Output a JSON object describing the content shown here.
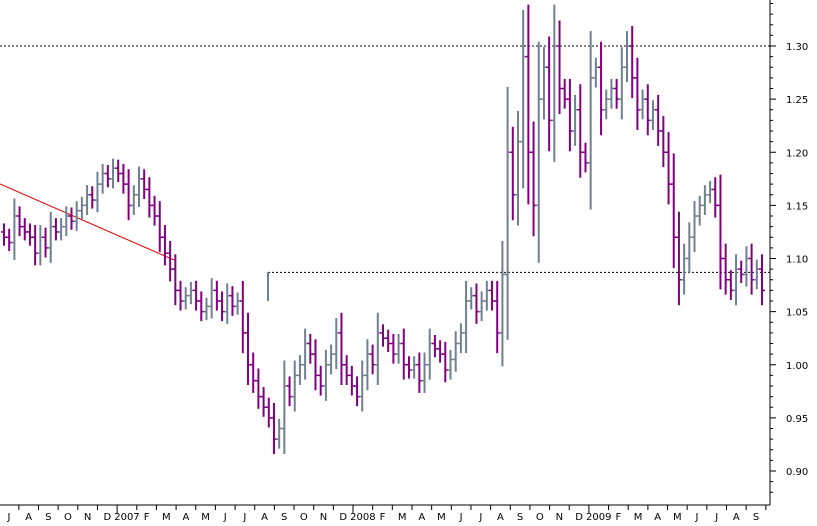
{
  "chart_data": {
    "type": "ohlc",
    "title": "",
    "xlabel": "",
    "ylabel": "",
    "ylim": [
      0.875,
      1.355
    ],
    "y_ticks": [
      0.9,
      0.95,
      1.0,
      1.05,
      1.1,
      1.15,
      1.2,
      1.25,
      1.3
    ],
    "y_tick_labels": [
      "0.90",
      "0.95",
      "1.00",
      "1.05",
      "1.10",
      "1.15",
      "1.20",
      "1.25",
      "1.30"
    ],
    "x_axis_labels": [
      "J",
      "A",
      "S",
      "O",
      "N",
      "D",
      "2007",
      "F",
      "M",
      "A",
      "M",
      "J",
      "J",
      "A",
      "S",
      "O",
      "N",
      "D",
      "2008",
      "F",
      "M",
      "A",
      "M",
      "J",
      "J",
      "A",
      "S",
      "O",
      "N",
      "D",
      "2009",
      "F",
      "M",
      "A",
      "M",
      "J",
      "J",
      "A",
      "S"
    ],
    "colors": {
      "up": "#708090",
      "down": "#800080",
      "trendline": "#dd0000",
      "reference": "#000000",
      "background": "#ffffff",
      "axis": "#000000"
    },
    "close": [
      1.12,
      1.115,
      1.14,
      1.13,
      1.125,
      1.12,
      1.105,
      1.12,
      1.11,
      1.13,
      1.125,
      1.13,
      1.14,
      1.135,
      1.145,
      1.15,
      1.16,
      1.155,
      1.17,
      1.18,
      1.175,
      1.185,
      1.18,
      1.17,
      1.15,
      1.16,
      1.175,
      1.165,
      1.15,
      1.14,
      1.12,
      1.105,
      1.09,
      1.07,
      1.06,
      1.065,
      1.07,
      1.06,
      1.05,
      1.055,
      1.07,
      1.06,
      1.05,
      1.065,
      1.055,
      1.06,
      1.03,
      1.0,
      0.985,
      0.97,
      0.96,
      0.95,
      0.93,
      0.94,
      0.98,
      0.97,
      0.99,
      1.0,
      1.02,
      1.01,
      0.99,
      0.98,
      1.0,
      1.01,
      1.03,
      1.0,
      0.99,
      0.98,
      0.97,
      0.99,
      1.01,
      1.0,
      1.03,
      1.025,
      1.02,
      1.01,
      1.02,
      1.0,
      0.995,
      1.0,
      0.985,
      1.0,
      1.02,
      1.015,
      1.01,
      0.995,
      1.005,
      1.02,
      1.03,
      1.06,
      1.065,
      1.05,
      1.06,
      1.07,
      1.06,
      1.03,
      1.085,
      1.2,
      1.16,
      1.21,
      1.29,
      1.2,
      1.15,
      1.25,
      1.28,
      1.23,
      1.3,
      1.26,
      1.25,
      1.22,
      1.24,
      1.2,
      1.19,
      1.27,
      1.28,
      1.24,
      1.25,
      1.26,
      1.25,
      1.28,
      1.3,
      1.27,
      1.24,
      1.25,
      1.23,
      1.24,
      1.22,
      1.2,
      1.17,
      1.12,
      1.08,
      1.1,
      1.12,
      1.14,
      1.15,
      1.16,
      1.165,
      1.15,
      1.1,
      1.08,
      1.07,
      1.09,
      1.085,
      1.1,
      1.08,
      1.09,
      1.07
    ]
  }
}
